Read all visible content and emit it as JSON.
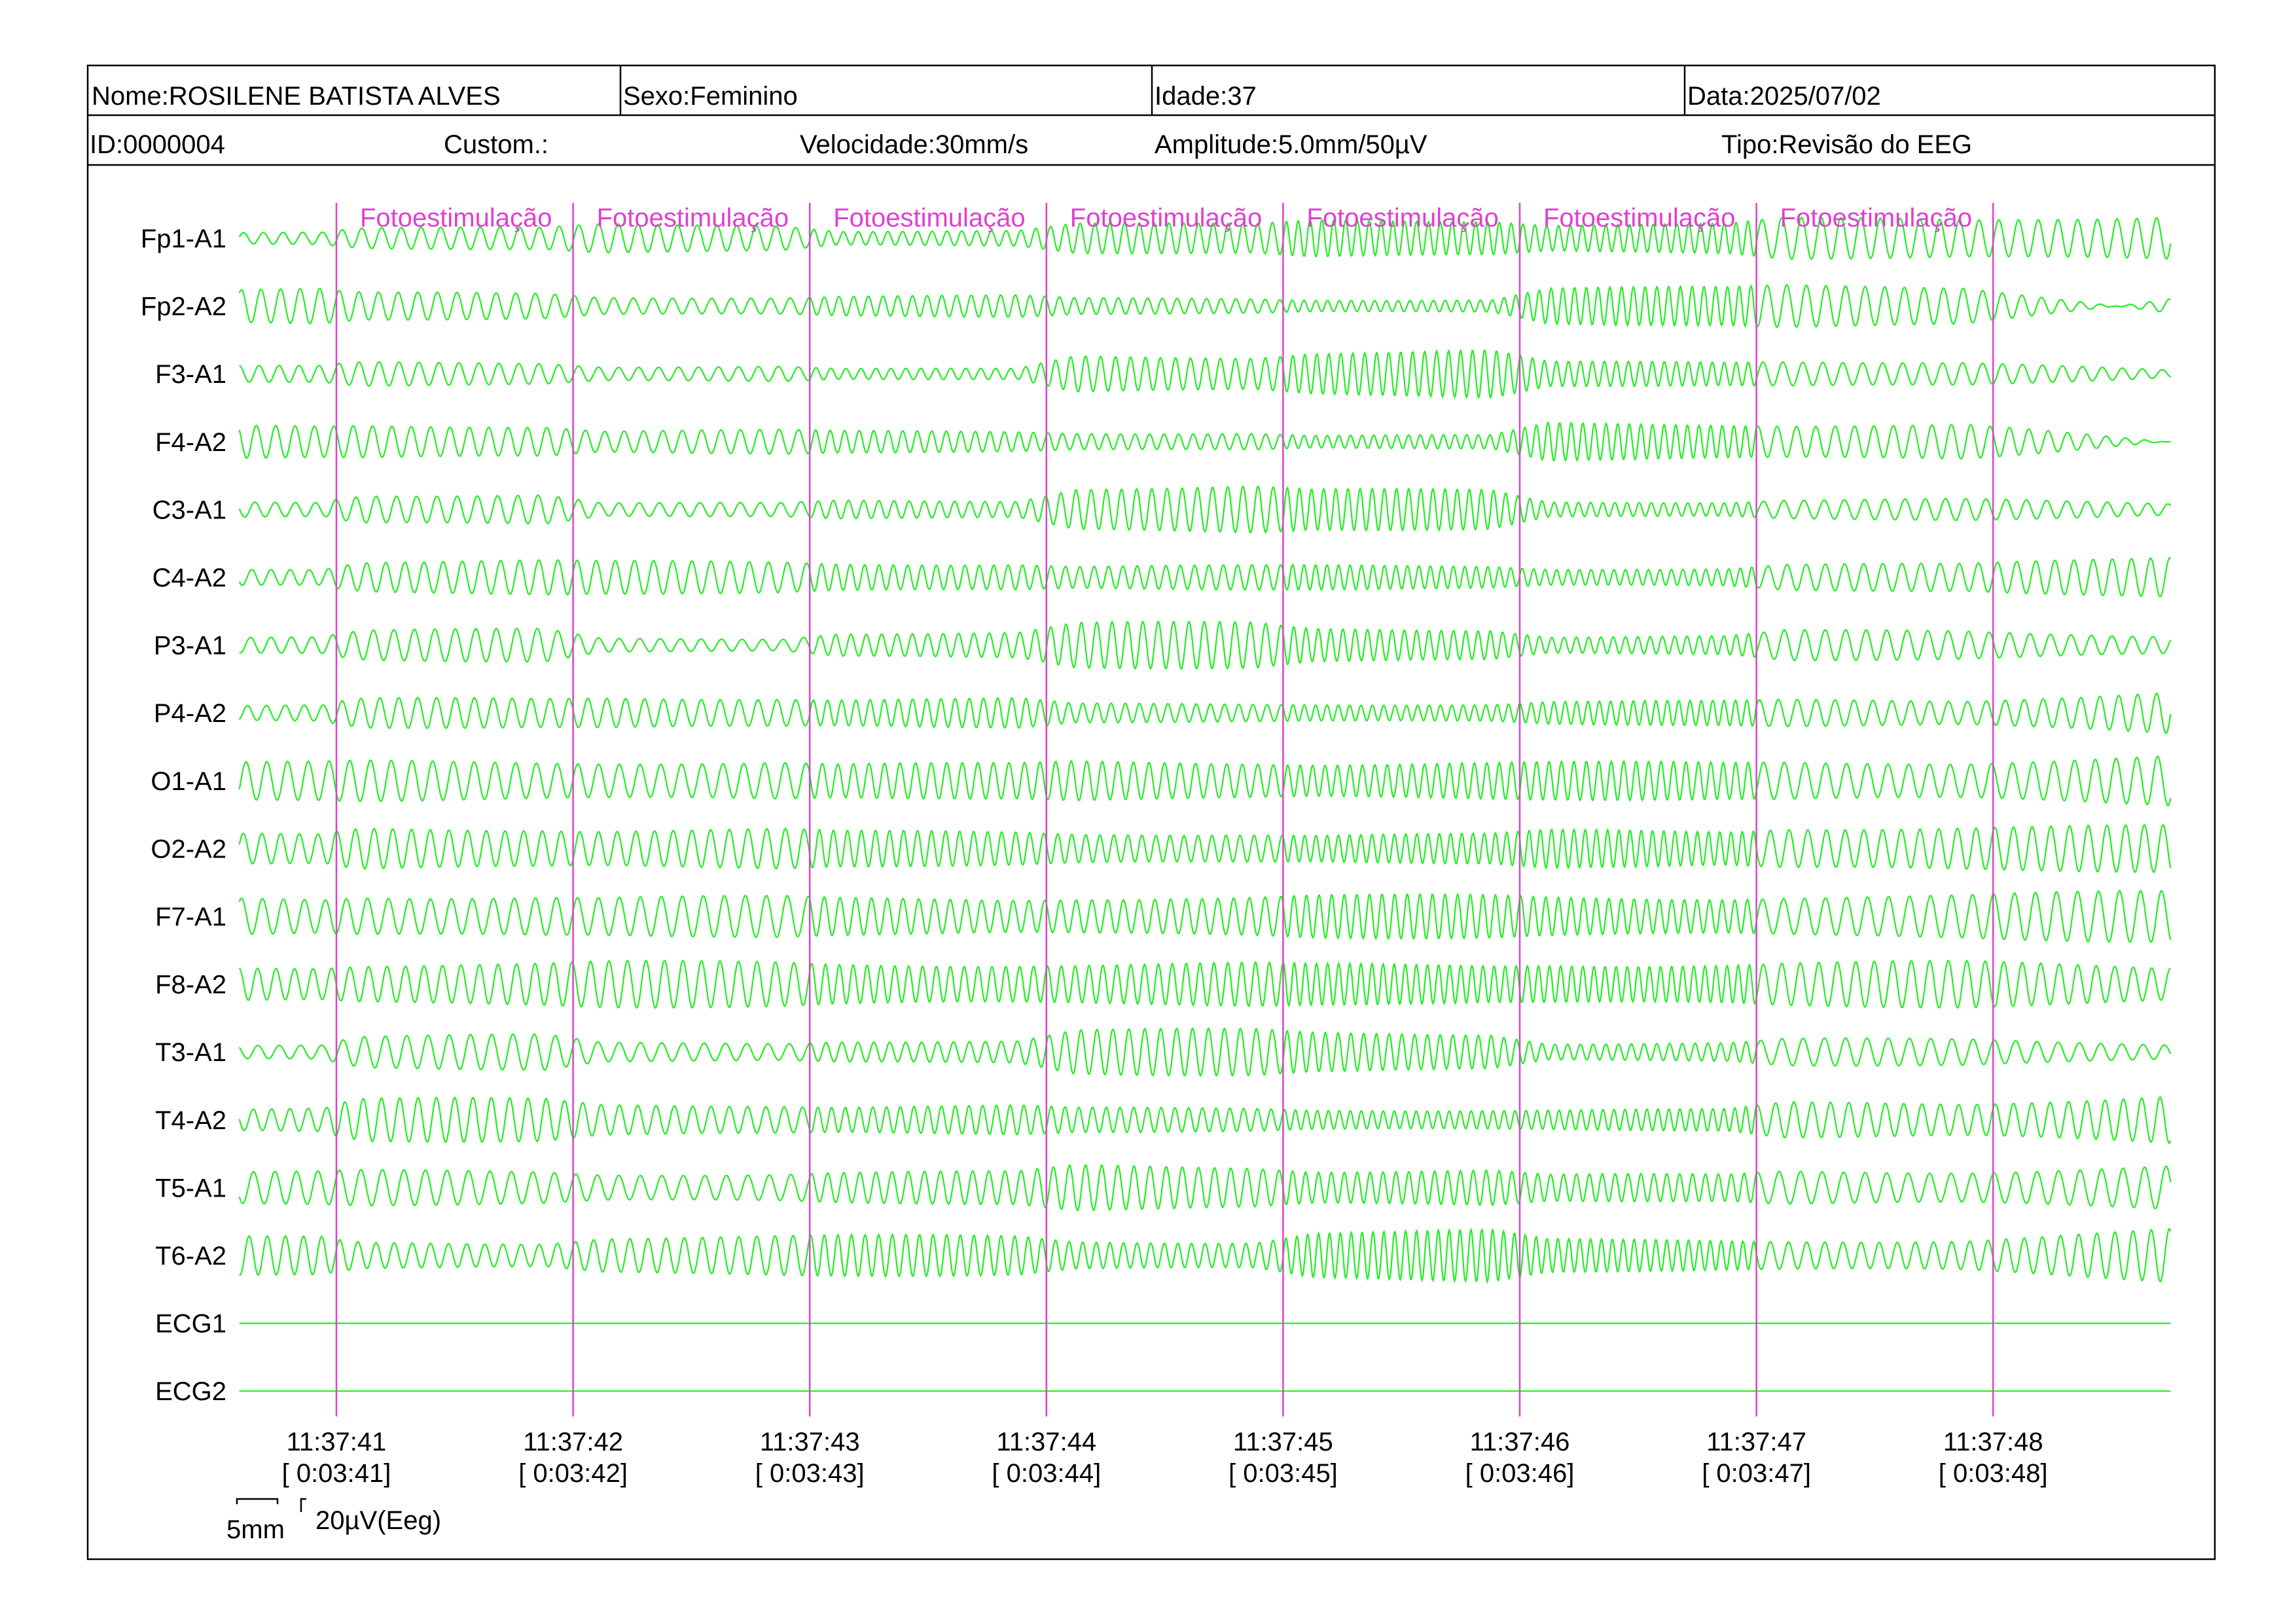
{
  "header": {
    "name": "Nome:ROSILENE BATISTA ALVES",
    "sex": "Sexo:Feminino",
    "age": "Idade:37",
    "date": "Data:2025/07/02",
    "id": "ID:0000004",
    "custom": "Custom.:",
    "speed": "Velocidade:30mm/s",
    "amplitude": "Amplitude:5.0mm/50µV",
    "type": "Tipo:Revisão do EEG"
  },
  "colors": {
    "trace": "#22ee22",
    "marker": "#e040d0",
    "frame": "#000000",
    "background": "#ffffff"
  },
  "scale_bar": {
    "time_label": "5mm",
    "amplitude_label": "20µV(Eeg)"
  },
  "chart_data": {
    "type": "line",
    "title": "",
    "channels": [
      "Fp1-A1",
      "Fp2-A2",
      "F3-A1",
      "F4-A2",
      "C3-A1",
      "C4-A2",
      "P3-A1",
      "P4-A2",
      "O1-A1",
      "O2-A2",
      "F7-A1",
      "F8-A2",
      "T3-A1",
      "T4-A2",
      "T5-A1",
      "T6-A2",
      "ECG1",
      "ECG2"
    ],
    "time_ticks": [
      {
        "time": "11:37:41",
        "elapsed": "[ 0:03:41]"
      },
      {
        "time": "11:37:42",
        "elapsed": "[ 0:03:42]"
      },
      {
        "time": "11:37:43",
        "elapsed": "[ 0:03:43]"
      },
      {
        "time": "11:37:44",
        "elapsed": "[ 0:03:44]"
      },
      {
        "time": "11:37:45",
        "elapsed": "[ 0:03:45]"
      },
      {
        "time": "11:37:46",
        "elapsed": "[ 0:03:46]"
      },
      {
        "time": "11:37:47",
        "elapsed": "[ 0:03:47]"
      },
      {
        "time": "11:37:48",
        "elapsed": "[ 0:03:48]"
      }
    ],
    "events": [
      {
        "at": "11:37:41",
        "label": "Fotoestimulação"
      },
      {
        "at": "11:37:42",
        "label": "Fotoestimulação"
      },
      {
        "at": "11:37:43",
        "label": "Fotoestimulação"
      },
      {
        "at": "11:37:44",
        "label": "Fotoestimulação"
      },
      {
        "at": "11:37:45",
        "label": "Fotoestimulação"
      },
      {
        "at": "11:37:46",
        "label": "Fotoestimulação"
      },
      {
        "at": "11:37:47",
        "label": "Fotoestimulação"
      }
    ],
    "x_range_seconds": [
      -0.41,
      7.75
    ],
    "photic_frequencies_hz": [
      12,
      12,
      12,
      16,
      16,
      20,
      20,
      12
    ],
    "series": [
      {
        "name": "Fp1-A1",
        "amplitudes": [
          0.25,
          0.4,
          0.55,
          0.3,
          0.55,
          0.75,
          0.55,
          0.75,
          0.8
        ]
      },
      {
        "name": "Fp2-A2",
        "amplitudes": [
          0.65,
          0.5,
          0.35,
          0.4,
          0.3,
          0.25,
          0.7,
          0.8,
          0.5
        ]
      },
      {
        "name": "F3-A1",
        "amplitudes": [
          0.3,
          0.45,
          0.3,
          0.2,
          0.7,
          0.9,
          0.45,
          0.5,
          0.4
        ]
      },
      {
        "name": "F4-A2",
        "amplitudes": [
          0.6,
          0.65,
          0.45,
          0.4,
          0.35,
          0.25,
          0.7,
          0.7,
          0.5
        ]
      },
      {
        "name": "C3-A1",
        "amplitudes": [
          0.3,
          0.6,
          0.25,
          0.35,
          0.9,
          0.75,
          0.3,
          0.4,
          0.35
        ]
      },
      {
        "name": "C4-A2",
        "amplitudes": [
          0.35,
          0.65,
          0.6,
          0.55,
          0.45,
          0.45,
          0.35,
          0.5,
          0.6
        ]
      },
      {
        "name": "P3-A1",
        "amplitudes": [
          0.35,
          0.6,
          0.25,
          0.5,
          0.85,
          0.65,
          0.35,
          0.55,
          0.5
        ]
      },
      {
        "name": "P4-A2",
        "amplitudes": [
          0.3,
          0.55,
          0.6,
          0.55,
          0.35,
          0.35,
          0.45,
          0.5,
          0.6
        ]
      },
      {
        "name": "O1-A1",
        "amplitudes": [
          0.7,
          0.75,
          0.75,
          0.65,
          0.75,
          0.7,
          0.7,
          0.75,
          0.8
        ]
      },
      {
        "name": "O2-A2",
        "amplitudes": [
          0.55,
          0.8,
          0.75,
          0.65,
          0.6,
          0.55,
          0.7,
          0.85,
          0.85
        ]
      },
      {
        "name": "F7-A1",
        "amplitudes": [
          0.7,
          0.8,
          0.75,
          0.7,
          0.75,
          0.8,
          0.75,
          0.8,
          0.85
        ]
      },
      {
        "name": "F8-A2",
        "amplitudes": [
          0.7,
          0.8,
          0.85,
          0.8,
          0.8,
          0.75,
          0.8,
          0.85,
          0.8
        ]
      },
      {
        "name": "T3-A1",
        "amplitudes": [
          0.3,
          0.65,
          0.35,
          0.45,
          0.85,
          0.75,
          0.35,
          0.5,
          0.45
        ]
      },
      {
        "name": "T4-A2",
        "amplitudes": [
          0.45,
          0.8,
          0.6,
          0.55,
          0.45,
          0.4,
          0.4,
          0.65,
          0.75
        ]
      },
      {
        "name": "T5-A1",
        "amplitudes": [
          0.6,
          0.65,
          0.55,
          0.6,
          0.85,
          0.7,
          0.5,
          0.65,
          0.7
        ]
      },
      {
        "name": "T6-A2",
        "amplitudes": [
          0.7,
          0.5,
          0.75,
          0.75,
          0.55,
          0.95,
          0.6,
          0.6,
          0.7
        ]
      },
      {
        "name": "ECG1",
        "amplitudes": [
          0,
          0,
          0,
          0,
          0,
          0,
          0,
          0,
          0
        ]
      },
      {
        "name": "ECG2",
        "amplitudes": [
          0,
          0,
          0,
          0,
          0,
          0,
          0,
          0,
          0
        ]
      }
    ]
  }
}
